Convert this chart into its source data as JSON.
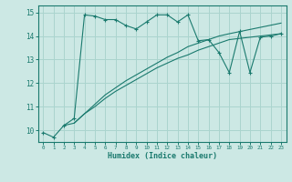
{
  "line1_x": [
    0,
    1,
    2,
    3,
    4,
    5,
    6,
    7,
    8,
    9,
    10,
    11,
    12,
    13,
    14,
    15,
    16,
    17,
    18,
    19,
    20,
    21,
    22,
    23
  ],
  "line1_y": [
    9.9,
    9.7,
    10.2,
    10.5,
    14.9,
    14.85,
    14.7,
    14.7,
    14.45,
    14.3,
    14.6,
    14.9,
    14.9,
    14.6,
    14.9,
    13.8,
    13.85,
    13.3,
    12.45,
    14.2,
    12.45,
    13.95,
    14.0,
    14.1
  ],
  "line2_x": [
    2,
    3,
    4,
    5,
    6,
    7,
    8,
    9,
    10,
    11,
    12,
    13,
    14,
    15,
    16,
    17,
    18,
    23
  ],
  "line2_y": [
    10.2,
    10.3,
    10.7,
    11.0,
    11.35,
    11.65,
    11.9,
    12.15,
    12.4,
    12.65,
    12.85,
    13.05,
    13.2,
    13.4,
    13.55,
    13.7,
    13.85,
    14.1
  ],
  "line3_x": [
    3,
    4,
    5,
    6,
    7,
    8,
    9,
    10,
    11,
    12,
    13,
    14,
    15,
    16,
    17,
    18,
    23
  ],
  "line3_y": [
    10.3,
    10.7,
    11.1,
    11.5,
    11.8,
    12.1,
    12.35,
    12.6,
    12.85,
    13.1,
    13.3,
    13.55,
    13.7,
    13.85,
    14.0,
    14.1,
    14.55
  ],
  "line_color": "#1a7a6e",
  "bg_color": "#cce8e4",
  "grid_color": "#aad4ce",
  "xlabel": "Humidex (Indice chaleur)",
  "ylim": [
    9.5,
    15.3
  ],
  "xlim": [
    -0.5,
    23.5
  ],
  "yticks": [
    10,
    11,
    12,
    13,
    14,
    15
  ],
  "xticks": [
    0,
    1,
    2,
    3,
    4,
    5,
    6,
    7,
    8,
    9,
    10,
    11,
    12,
    13,
    14,
    15,
    16,
    17,
    18,
    19,
    20,
    21,
    22,
    23
  ]
}
